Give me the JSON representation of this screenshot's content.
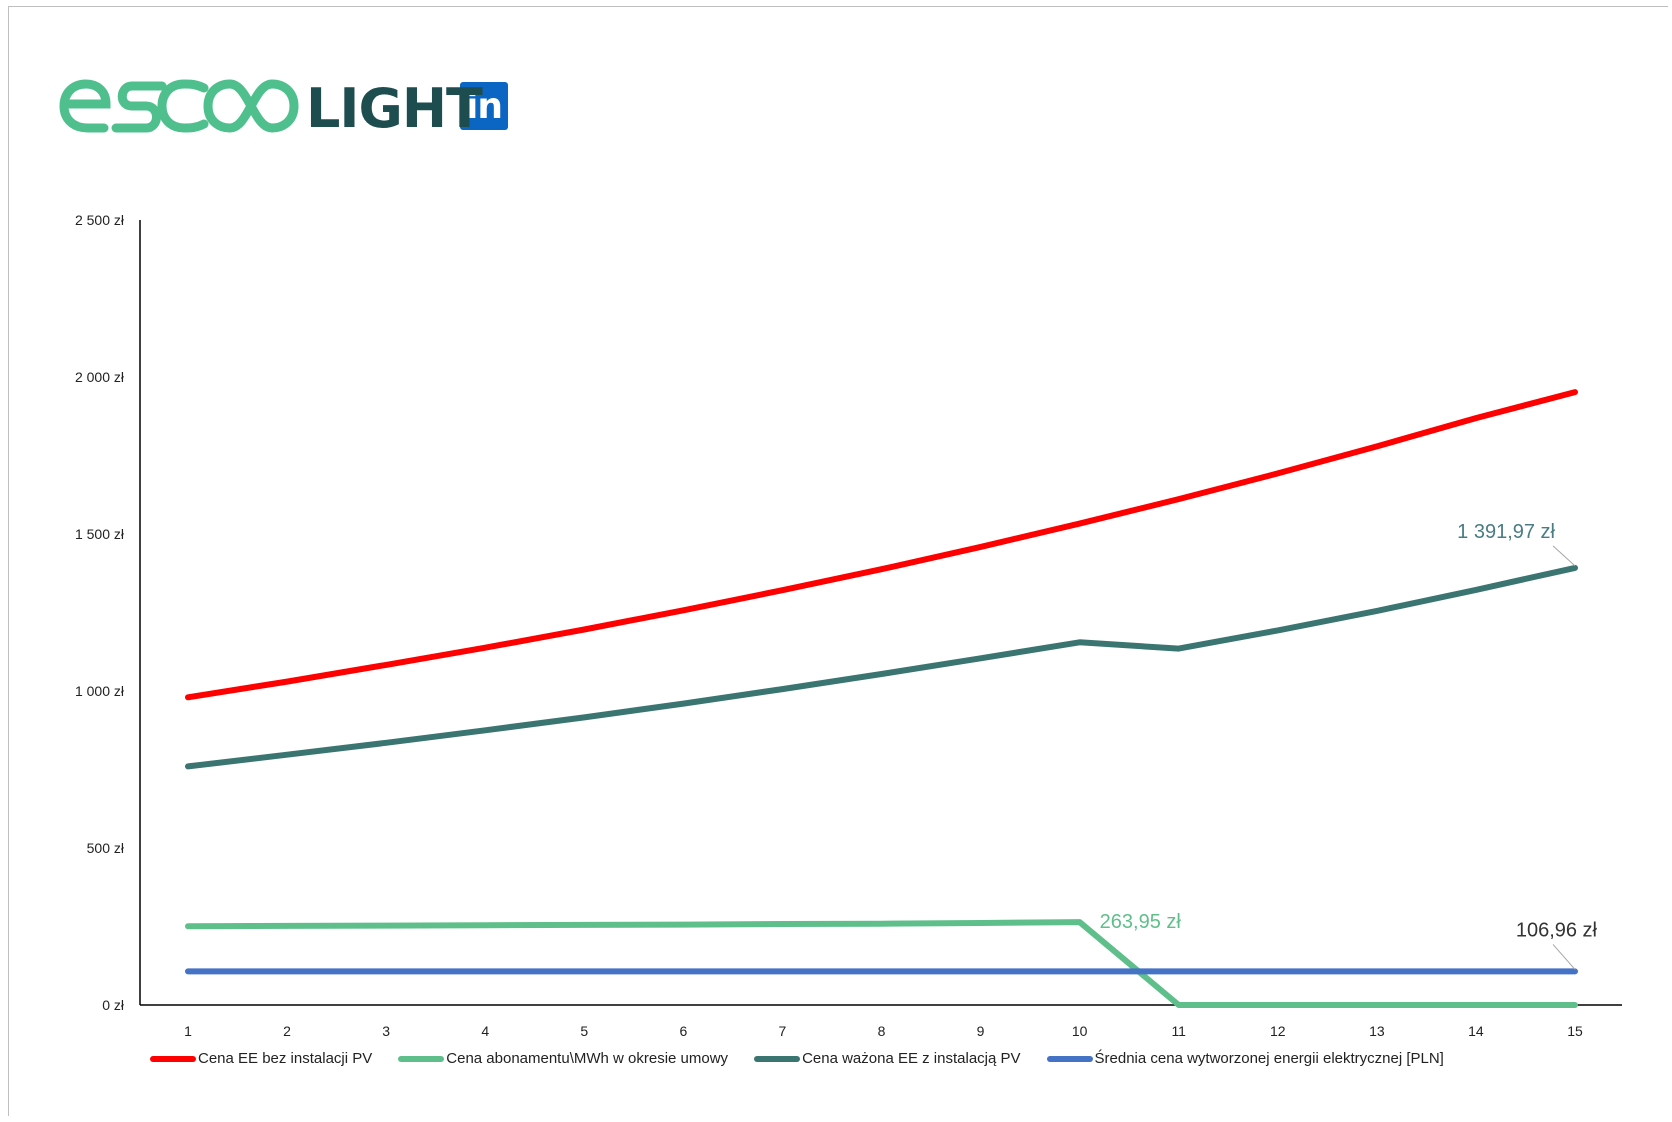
{
  "brand": {
    "logo_text": "escoLIGHT",
    "social": "in"
  },
  "colors": {
    "series_red": "#ff0000",
    "series_lightgreen": "#5fbf8a",
    "series_darkteal": "#3a7572",
    "series_blue": "#4472c4",
    "label_lightgreen": "#5fbf8a",
    "label_darkteal": "#4a7c85",
    "label_dark": "#333333",
    "linkedin": "#0a66c2"
  },
  "chart_data": {
    "type": "line",
    "title": "",
    "xlabel": "",
    "ylabel": "",
    "x": [
      1,
      2,
      3,
      4,
      5,
      6,
      7,
      8,
      9,
      10,
      11,
      12,
      13,
      14,
      15
    ],
    "ylim": [
      0,
      2500
    ],
    "yticks": [
      0,
      500,
      1000,
      1500,
      2000,
      2500
    ],
    "ytick_labels": [
      "0 zł",
      "500 zł",
      "1 000 zł",
      "1 500 zł",
      "2 000 zł",
      "2 500 zł"
    ],
    "grid": false,
    "legend_position": "bottom",
    "series": [
      {
        "name": "Cena EE bez instalacji PV",
        "color": "#ff0000",
        "values": [
          980,
          1030,
          1083,
          1138,
          1196,
          1257,
          1321,
          1388,
          1459,
          1533,
          1611,
          1693,
          1779,
          1869,
          1952
        ]
      },
      {
        "name": "Cena abonamentu\\MWh w okresie umowy",
        "color": "#5fbf8a",
        "values": [
          251,
          252,
          253,
          254,
          255,
          256,
          258,
          259,
          261,
          263.95,
          0,
          0,
          0,
          0,
          0
        ]
      },
      {
        "name": "Cena ważona EE z instalacją PV",
        "color": "#3a7572",
        "values": [
          760,
          797,
          835,
          875,
          916,
          960,
          1006,
          1054,
          1104,
          1155,
          1135,
          1193,
          1255,
          1322,
          1391.97
        ]
      },
      {
        "name": "Średnia cena wytworzonej energii elektrycznej [PLN]",
        "color": "#4472c4",
        "values": [
          106.96,
          106.96,
          106.96,
          106.96,
          106.96,
          106.96,
          106.96,
          106.96,
          106.96,
          106.96,
          106.96,
          106.96,
          106.96,
          106.96,
          106.96
        ]
      }
    ],
    "annotations": [
      {
        "text": "1 391,97 zł",
        "series": 2,
        "x": 15,
        "color": "#4a7c85"
      },
      {
        "text": "263,95 zł",
        "series": 1,
        "x": 10,
        "color": "#5fbf8a"
      },
      {
        "text": "106,96 zł",
        "series": 3,
        "x": 15,
        "color": "#333333"
      }
    ]
  }
}
